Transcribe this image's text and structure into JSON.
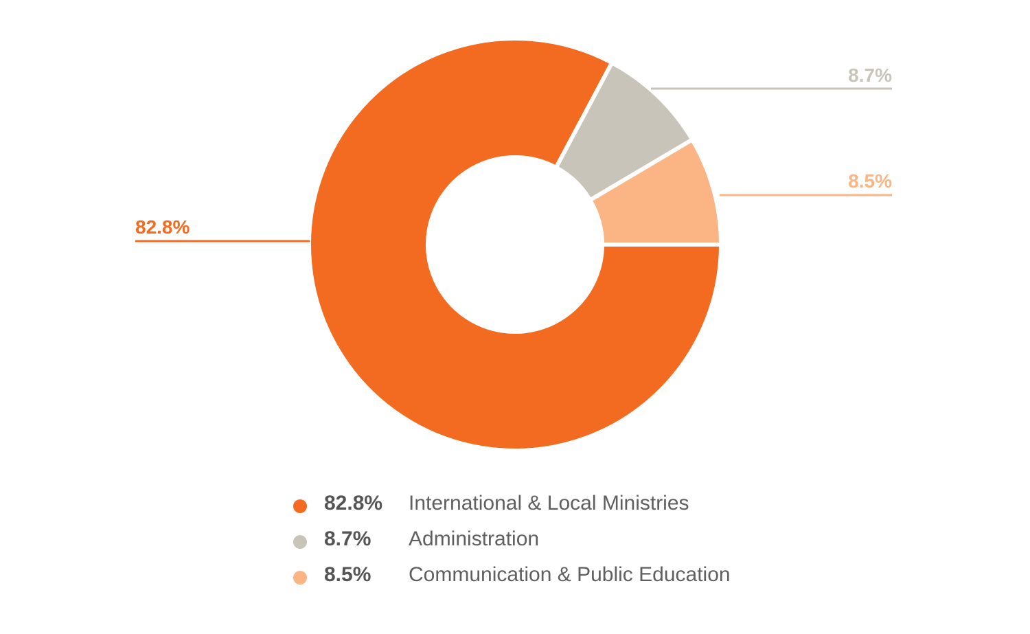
{
  "chart_data": {
    "type": "pie",
    "variant": "donut",
    "title": "",
    "categories": [
      "International & Local Ministries",
      "Administration",
      "Communication & Public Education"
    ],
    "values": [
      82.8,
      8.7,
      8.5
    ],
    "value_labels": [
      "82.8%",
      "8.7%",
      "8.5%"
    ],
    "colors": [
      "#f26b21",
      "#c9c4b9",
      "#fbb584"
    ],
    "legend_position": "bottom",
    "grid": false
  }
}
